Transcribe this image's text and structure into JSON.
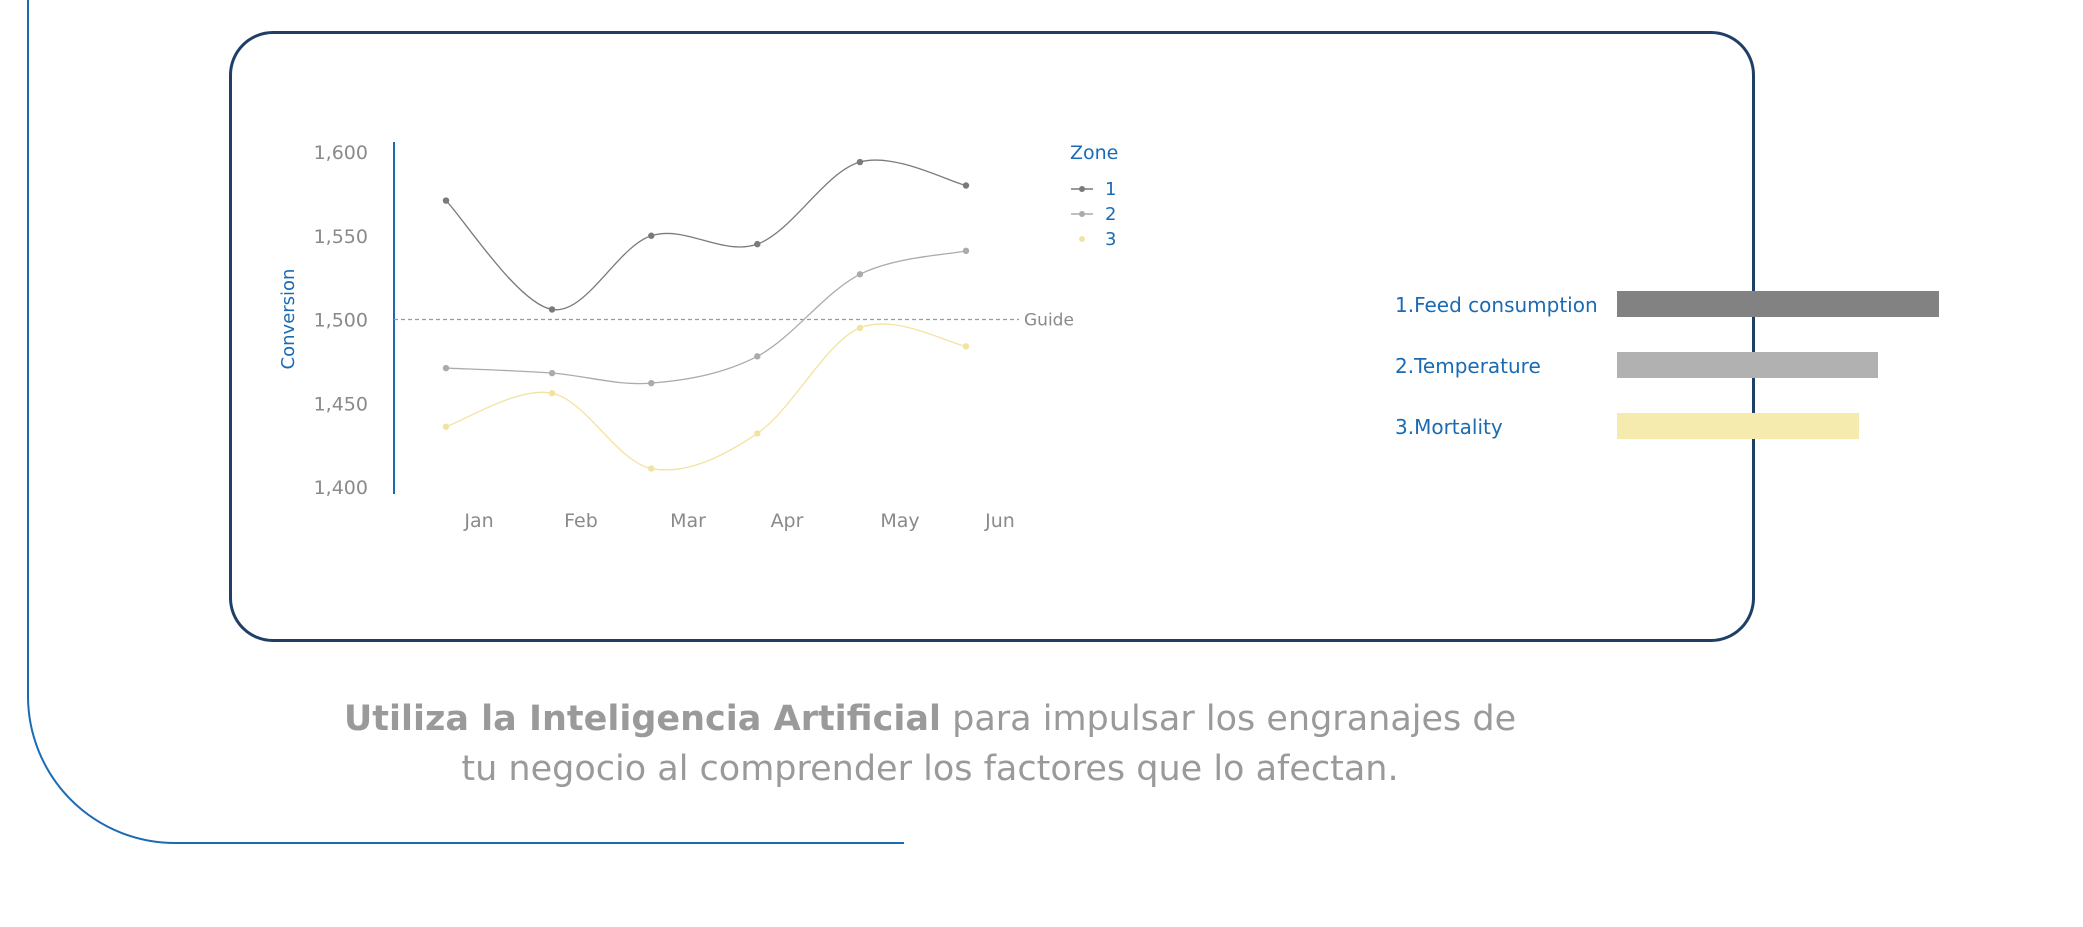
{
  "colors": {
    "frame": "#1a6bb3",
    "card_border": "#1f3f66",
    "label_blue": "#1a6bb3",
    "axis_text": "#8a8a8a",
    "guide": "#9a9a9a",
    "series_1": "#7a7a7a",
    "series_2": "#ababab",
    "series_3": "#f3e3a0",
    "tagline": "#9a9a9a"
  },
  "chart_data": {
    "type": "line",
    "ylabel": "Conversion",
    "xlabel": "",
    "categories": [
      "Jan",
      "Feb",
      "Mar",
      "Apr",
      "May",
      "Jun"
    ],
    "yticks": [
      "1,400",
      "1,450",
      "1,500",
      "1,550",
      "1,600"
    ],
    "ylim": [
      1400,
      1600
    ],
    "grid": false,
    "legend": {
      "title": "Zone",
      "placement": "top-right"
    },
    "reference_line": {
      "label": "Guide",
      "value": 1500
    },
    "series": [
      {
        "name": "1",
        "x": [
          "2024-01-01",
          "2024-02-01",
          "2024-03-01",
          "2024-04-01",
          "2024-05-01",
          "2024-06-01"
        ],
        "values": [
          1571,
          1506,
          1550,
          1545,
          1594,
          1580
        ]
      },
      {
        "name": "2",
        "x": [
          "2024-01-01",
          "2024-02-01",
          "2024-03-01",
          "2024-04-01",
          "2024-05-01",
          "2024-06-01"
        ],
        "values": [
          1471,
          1468,
          1462,
          1478,
          1527,
          1541
        ]
      },
      {
        "name": "3",
        "x": [
          "2024-01-01",
          "2024-02-01",
          "2024-03-01",
          "2024-04-01",
          "2024-05-01",
          "2024-06-01"
        ],
        "values": [
          1436,
          1456,
          1411,
          1432,
          1495,
          1484
        ]
      }
    ]
  },
  "factors": {
    "items": [
      {
        "label": "1.Feed consumption",
        "value": 1.0,
        "color": "#828282"
      },
      {
        "label": "2.Temperature",
        "value": 0.81,
        "color": "#b1b1b1"
      },
      {
        "label": "3.Mortality",
        "value": 0.75,
        "color": "#f6ebae"
      }
    ]
  },
  "tagline": {
    "bold": "Utiliza la Inteligencia Artificial",
    "rest_line1": " para impulsar los engranajes de",
    "line2": "tu negocio al comprender los factores que lo afectan."
  }
}
